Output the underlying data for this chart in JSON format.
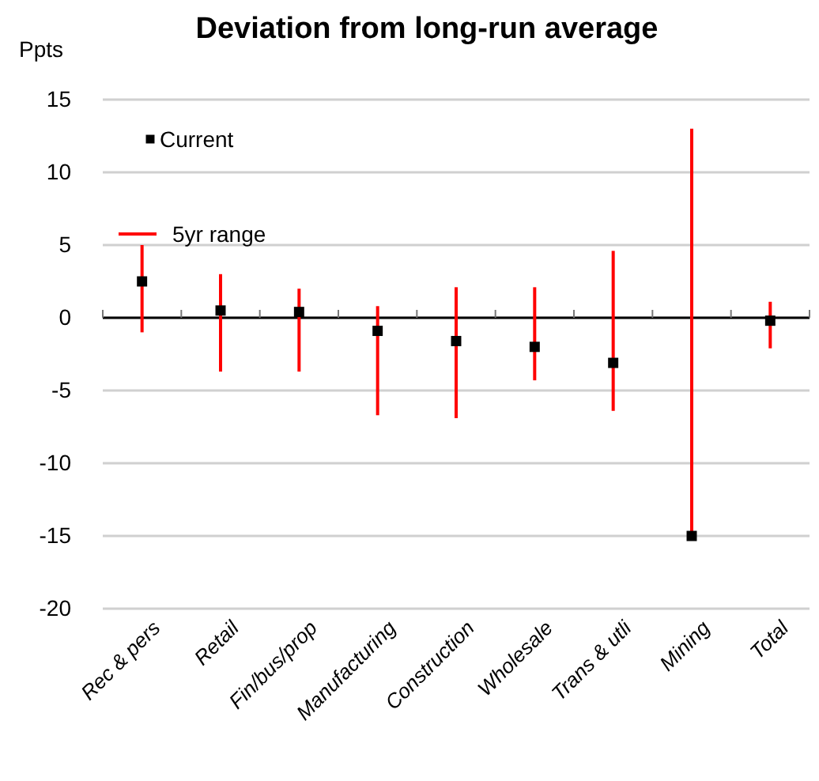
{
  "chart_data": {
    "type": "scatter",
    "title": "Deviation from long-run average",
    "ylabel": "Ppts",
    "categories": [
      "Rec & pers",
      "Retail",
      "Fin/bus/prop",
      "Manufacturing",
      "Construction",
      "Wholesale",
      "Trans & utli",
      "Mining",
      "Total"
    ],
    "series": [
      {
        "name": "Current",
        "color": "#000000",
        "values": [
          2.5,
          0.5,
          0.4,
          -0.9,
          -1.6,
          -2.0,
          -3.1,
          -15,
          -0.2
        ]
      },
      {
        "name": "5yr range",
        "type": "bar",
        "color": "#ff0000",
        "base": [
          -1,
          -3.7,
          -3.7,
          -6.7,
          -6.9,
          -4.3,
          -6.4,
          -15,
          -2.1
        ],
        "values": [
          6,
          6.7,
          5.7,
          7.5,
          9.0,
          6.4,
          11.0,
          28,
          3.2
        ]
      }
    ],
    "ylim": [
      -20,
      15
    ],
    "yticks": [
      -20,
      -15,
      -10,
      -5,
      0,
      5,
      10,
      15
    ],
    "grid": "y",
    "legend": "top left",
    "marker": "square"
  }
}
